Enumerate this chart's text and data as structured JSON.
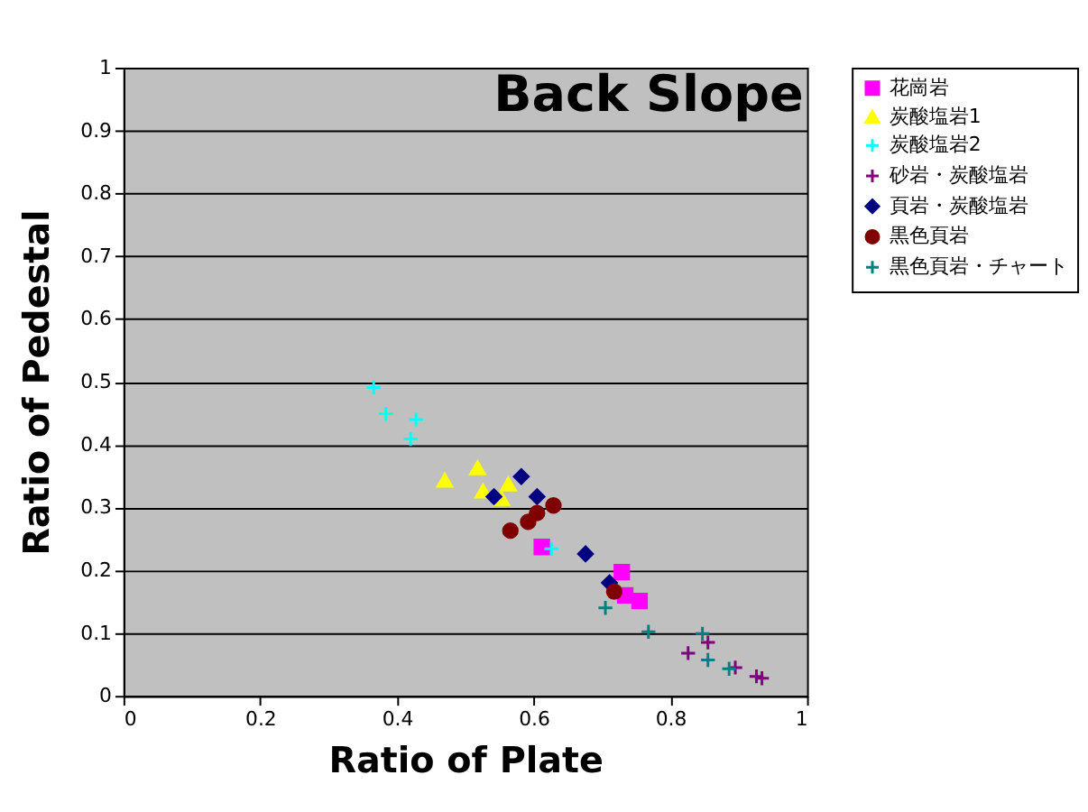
{
  "chart_data": {
    "type": "scatter",
    "title": "Back Slope",
    "xlabel": "Ratio of Plate",
    "ylabel": "Ratio of Pedestal",
    "xlim": [
      0,
      1
    ],
    "ylim": [
      0,
      1
    ],
    "xticks": [
      {
        "value": 0,
        "label": "0"
      },
      0.2,
      0.4,
      0.6,
      0.8,
      {
        "value": 1,
        "label": "1"
      }
    ],
    "yticks": [
      {
        "value": 0,
        "label": "0"
      },
      0.1,
      0.2,
      0.3,
      0.4,
      0.5,
      0.6,
      0.7,
      0.8,
      0.9,
      {
        "value": 1,
        "label": "1"
      }
    ],
    "grid": "y",
    "legend": "right",
    "series": [
      {
        "name": "花崗岩",
        "color": "#ff00ff",
        "marker": "square",
        "x": [
          0.612,
          0.729,
          0.734,
          0.755
        ],
        "values": [
          0.237,
          0.197,
          0.16,
          0.151
        ]
      },
      {
        "name": "炭酸塩岩1",
        "color": "#ffff00",
        "marker": "triangle",
        "x": [
          0.47,
          0.518,
          0.526,
          0.563,
          0.553
        ],
        "values": [
          0.343,
          0.363,
          0.326,
          0.337,
          0.314
        ]
      },
      {
        "name": "炭酸塩岩2",
        "color": "#00ffff",
        "marker": "cross",
        "x": [
          0.366,
          0.384,
          0.428,
          0.42,
          0.626
        ],
        "values": [
          0.491,
          0.449,
          0.44,
          0.409,
          0.234
        ]
      },
      {
        "name": "砂岩・炭酸塩岩",
        "color": "#800080",
        "marker": "cross",
        "x": [
          0.826,
          0.855,
          0.895,
          0.926,
          0.934
        ],
        "values": [
          0.068,
          0.085,
          0.045,
          0.031,
          0.028
        ]
      },
      {
        "name": "頁岩・炭酸塩岩",
        "color": "#000080",
        "marker": "diamond",
        "x": [
          0.582,
          0.542,
          0.605,
          0.676,
          0.711
        ],
        "values": [
          0.349,
          0.317,
          0.317,
          0.226,
          0.18
        ]
      },
      {
        "name": "黒色頁岩",
        "color": "#800000",
        "marker": "circle",
        "x": [
          0.629,
          0.605,
          0.592,
          0.566,
          0.718
        ],
        "values": [
          0.303,
          0.291,
          0.277,
          0.263,
          0.166
        ]
      },
      {
        "name": "黒色頁岩・チャート",
        "color": "#008080",
        "marker": "cross",
        "x": [
          0.705,
          0.768,
          0.847,
          0.855,
          0.886
        ],
        "values": [
          0.14,
          0.102,
          0.099,
          0.057,
          0.043
        ]
      }
    ]
  }
}
